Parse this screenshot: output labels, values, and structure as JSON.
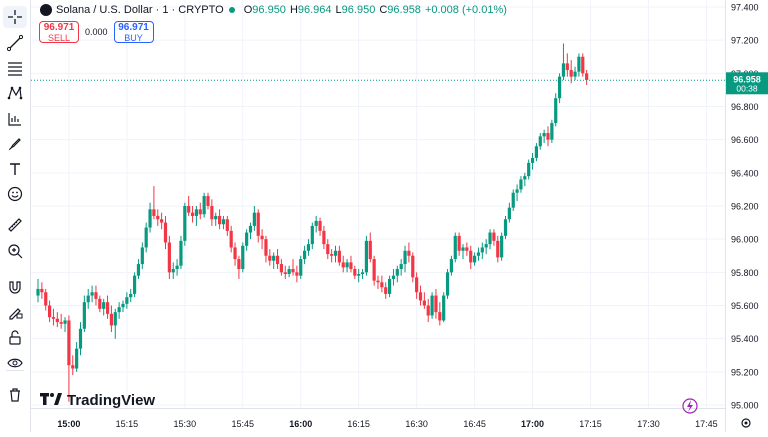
{
  "toolbar": {
    "items": [
      {
        "name": "crosshair-icon"
      },
      {
        "name": "trend-line-icon"
      },
      {
        "name": "fib-retracement-icon"
      },
      {
        "name": "pattern-icon"
      },
      {
        "name": "forecast-icon"
      },
      {
        "name": "brush-icon"
      },
      {
        "name": "text-icon"
      },
      {
        "name": "emoji-icon"
      },
      {
        "name": "ruler-icon"
      },
      {
        "name": "zoom-in-icon"
      },
      {
        "name": "magnet-icon"
      },
      {
        "name": "lock-drawing-icon"
      },
      {
        "name": "unlock-icon"
      },
      {
        "name": "eye-icon"
      },
      {
        "name": "trash-icon"
      }
    ]
  },
  "legend": {
    "symbol": "Solana / U.S. Dollar · 1 · CRYPTO",
    "o_label": "O",
    "o_value": "96.950",
    "h_label": "H",
    "h_value": "96.964",
    "l_label": "L",
    "l_value": "96.950",
    "c_label": "C",
    "c_value": "96.958",
    "change": "+0.008 (+0.01%)"
  },
  "trade": {
    "sell_price": "96.971",
    "sell_label": "SELL",
    "spread": "0.000",
    "buy_price": "96.971",
    "buy_label": "BUY"
  },
  "price_badge": {
    "price": "96.958",
    "countdown": "00:38"
  },
  "brand": {
    "name": "TradingView"
  },
  "colors": {
    "up": "#089981",
    "down": "#f23645",
    "badge": "#089981",
    "grid": "#f0f3fa",
    "text": "#131722"
  },
  "chart_data": {
    "type": "candlestick",
    "symbol": "Solana / U.S. Dollar",
    "interval": "1",
    "y_ticks": [
      95.0,
      95.2,
      95.4,
      95.6,
      95.8,
      96.0,
      96.2,
      96.4,
      96.6,
      96.8,
      97.0,
      97.2,
      97.4
    ],
    "y_tick_labels": [
      "95.000",
      "95.200",
      "95.400",
      "95.600",
      "95.800",
      "96.000",
      "96.200",
      "96.400",
      "96.600",
      "96.800",
      "97.000",
      "97.200",
      "97.400"
    ],
    "ylim": [
      94.97,
      97.43
    ],
    "x_ticks": [
      "15:00",
      "15:15",
      "15:30",
      "15:45",
      "16:00",
      "16:15",
      "16:30",
      "16:45",
      "17:00",
      "17:15",
      "17:30",
      "17:45"
    ],
    "x_tick_minutes": [
      0,
      15,
      30,
      45,
      60,
      75,
      90,
      105,
      120,
      135,
      150,
      165
    ],
    "x_bold": [
      "15:00",
      "16:00",
      "17:00"
    ],
    "x_range_minutes": [
      -8,
      168
    ],
    "last_price": 96.958,
    "candles": [
      {
        "t": -8,
        "o": 95.66,
        "h": 95.76,
        "l": 95.62,
        "c": 95.7
      },
      {
        "t": -7,
        "o": 95.7,
        "h": 95.74,
        "l": 95.64,
        "c": 95.68
      },
      {
        "t": -6,
        "o": 95.68,
        "h": 95.7,
        "l": 95.57,
        "c": 95.6
      },
      {
        "t": -5,
        "o": 95.6,
        "h": 95.63,
        "l": 95.5,
        "c": 95.53
      },
      {
        "t": -4,
        "o": 95.53,
        "h": 95.58,
        "l": 95.48,
        "c": 95.52
      },
      {
        "t": -3,
        "o": 95.52,
        "h": 95.56,
        "l": 95.47,
        "c": 95.5
      },
      {
        "t": -2,
        "o": 95.5,
        "h": 95.55,
        "l": 95.46,
        "c": 95.49
      },
      {
        "t": -1,
        "o": 95.49,
        "h": 95.53,
        "l": 95.44,
        "c": 95.51
      },
      {
        "t": 0,
        "o": 95.51,
        "h": 95.54,
        "l": 95.02,
        "c": 95.24
      },
      {
        "t": 1,
        "o": 95.24,
        "h": 95.3,
        "l": 95.18,
        "c": 95.22
      },
      {
        "t": 2,
        "o": 95.22,
        "h": 95.38,
        "l": 95.2,
        "c": 95.34
      },
      {
        "t": 3,
        "o": 95.34,
        "h": 95.5,
        "l": 95.3,
        "c": 95.46
      },
      {
        "t": 4,
        "o": 95.46,
        "h": 95.66,
        "l": 95.44,
        "c": 95.62
      },
      {
        "t": 5,
        "o": 95.62,
        "h": 95.7,
        "l": 95.58,
        "c": 95.66
      },
      {
        "t": 6,
        "o": 95.66,
        "h": 95.72,
        "l": 95.62,
        "c": 95.68
      },
      {
        "t": 7,
        "o": 95.68,
        "h": 95.72,
        "l": 95.6,
        "c": 95.64
      },
      {
        "t": 8,
        "o": 95.64,
        "h": 95.66,
        "l": 95.56,
        "c": 95.58
      },
      {
        "t": 9,
        "o": 95.58,
        "h": 95.64,
        "l": 95.54,
        "c": 95.62
      },
      {
        "t": 10,
        "o": 95.62,
        "h": 95.66,
        "l": 95.52,
        "c": 95.55
      },
      {
        "t": 11,
        "o": 95.55,
        "h": 95.6,
        "l": 95.44,
        "c": 95.48
      },
      {
        "t": 12,
        "o": 95.48,
        "h": 95.58,
        "l": 95.4,
        "c": 95.56
      },
      {
        "t": 13,
        "o": 95.56,
        "h": 95.62,
        "l": 95.52,
        "c": 95.59
      },
      {
        "t": 14,
        "o": 95.59,
        "h": 95.63,
        "l": 95.56,
        "c": 95.61
      },
      {
        "t": 15,
        "o": 95.61,
        "h": 95.68,
        "l": 95.58,
        "c": 95.65
      },
      {
        "t": 16,
        "o": 95.65,
        "h": 95.7,
        "l": 95.62,
        "c": 95.67
      },
      {
        "t": 17,
        "o": 95.67,
        "h": 95.8,
        "l": 95.65,
        "c": 95.78
      },
      {
        "t": 18,
        "o": 95.78,
        "h": 95.88,
        "l": 95.76,
        "c": 95.85
      },
      {
        "t": 19,
        "o": 95.85,
        "h": 95.98,
        "l": 95.82,
        "c": 95.95
      },
      {
        "t": 20,
        "o": 95.95,
        "h": 96.1,
        "l": 95.92,
        "c": 96.07
      },
      {
        "t": 21,
        "o": 96.07,
        "h": 96.22,
        "l": 96.04,
        "c": 96.18
      },
      {
        "t": 22,
        "o": 96.18,
        "h": 96.32,
        "l": 96.12,
        "c": 96.14
      },
      {
        "t": 23,
        "o": 96.14,
        "h": 96.18,
        "l": 96.08,
        "c": 96.12
      },
      {
        "t": 24,
        "o": 96.12,
        "h": 96.16,
        "l": 96.06,
        "c": 96.1
      },
      {
        "t": 25,
        "o": 96.1,
        "h": 96.14,
        "l": 95.94,
        "c": 95.98
      },
      {
        "t": 26,
        "o": 95.98,
        "h": 96.02,
        "l": 95.76,
        "c": 95.8
      },
      {
        "t": 27,
        "o": 95.8,
        "h": 95.86,
        "l": 95.76,
        "c": 95.82
      },
      {
        "t": 28,
        "o": 95.82,
        "h": 95.88,
        "l": 95.78,
        "c": 95.84
      },
      {
        "t": 29,
        "o": 95.84,
        "h": 96.02,
        "l": 95.82,
        "c": 95.99
      },
      {
        "t": 30,
        "o": 95.99,
        "h": 96.22,
        "l": 95.96,
        "c": 96.2
      },
      {
        "t": 31,
        "o": 96.2,
        "h": 96.26,
        "l": 96.14,
        "c": 96.16
      },
      {
        "t": 32,
        "o": 96.16,
        "h": 96.2,
        "l": 96.1,
        "c": 96.14
      },
      {
        "t": 33,
        "o": 96.14,
        "h": 96.2,
        "l": 96.08,
        "c": 96.18
      },
      {
        "t": 34,
        "o": 96.18,
        "h": 96.22,
        "l": 96.12,
        "c": 96.15
      },
      {
        "t": 35,
        "o": 96.15,
        "h": 96.28,
        "l": 96.13,
        "c": 96.26
      },
      {
        "t": 36,
        "o": 96.26,
        "h": 96.28,
        "l": 96.18,
        "c": 96.2
      },
      {
        "t": 37,
        "o": 96.2,
        "h": 96.24,
        "l": 96.08,
        "c": 96.12
      },
      {
        "t": 38,
        "o": 96.12,
        "h": 96.16,
        "l": 96.08,
        "c": 96.14
      },
      {
        "t": 39,
        "o": 96.14,
        "h": 96.18,
        "l": 96.06,
        "c": 96.09
      },
      {
        "t": 40,
        "o": 96.09,
        "h": 96.14,
        "l": 96.06,
        "c": 96.12
      },
      {
        "t": 41,
        "o": 96.12,
        "h": 96.14,
        "l": 96.02,
        "c": 96.05
      },
      {
        "t": 42,
        "o": 96.05,
        "h": 96.08,
        "l": 95.92,
        "c": 95.95
      },
      {
        "t": 43,
        "o": 95.95,
        "h": 95.98,
        "l": 95.84,
        "c": 95.88
      },
      {
        "t": 44,
        "o": 95.88,
        "h": 95.9,
        "l": 95.76,
        "c": 95.82
      },
      {
        "t": 45,
        "o": 95.82,
        "h": 95.98,
        "l": 95.8,
        "c": 95.96
      },
      {
        "t": 46,
        "o": 95.96,
        "h": 96.06,
        "l": 95.93,
        "c": 96.04
      },
      {
        "t": 47,
        "o": 96.04,
        "h": 96.1,
        "l": 96.0,
        "c": 96.08
      },
      {
        "t": 48,
        "o": 96.08,
        "h": 96.2,
        "l": 96.05,
        "c": 96.16
      },
      {
        "t": 49,
        "o": 96.16,
        "h": 96.18,
        "l": 95.98,
        "c": 96.02
      },
      {
        "t": 50,
        "o": 96.02,
        "h": 96.06,
        "l": 95.94,
        "c": 96.0
      },
      {
        "t": 51,
        "o": 96.0,
        "h": 96.02,
        "l": 95.86,
        "c": 95.9
      },
      {
        "t": 52,
        "o": 95.9,
        "h": 95.94,
        "l": 95.84,
        "c": 95.87
      },
      {
        "t": 53,
        "o": 95.87,
        "h": 95.92,
        "l": 95.82,
        "c": 95.9
      },
      {
        "t": 54,
        "o": 95.9,
        "h": 95.94,
        "l": 95.82,
        "c": 95.85
      },
      {
        "t": 55,
        "o": 95.85,
        "h": 95.88,
        "l": 95.78,
        "c": 95.8
      },
      {
        "t": 56,
        "o": 95.8,
        "h": 95.84,
        "l": 95.76,
        "c": 95.79
      },
      {
        "t": 57,
        "o": 95.79,
        "h": 95.84,
        "l": 95.77,
        "c": 95.82
      },
      {
        "t": 58,
        "o": 95.82,
        "h": 95.88,
        "l": 95.78,
        "c": 95.8
      },
      {
        "t": 59,
        "o": 95.8,
        "h": 95.84,
        "l": 95.74,
        "c": 95.78
      },
      {
        "t": 60,
        "o": 95.78,
        "h": 95.9,
        "l": 95.76,
        "c": 95.88
      },
      {
        "t": 61,
        "o": 95.88,
        "h": 95.96,
        "l": 95.85,
        "c": 95.93
      },
      {
        "t": 62,
        "o": 95.93,
        "h": 96.0,
        "l": 95.9,
        "c": 95.97
      },
      {
        "t": 63,
        "o": 95.97,
        "h": 96.1,
        "l": 95.94,
        "c": 96.08
      },
      {
        "t": 64,
        "o": 96.08,
        "h": 96.14,
        "l": 96.04,
        "c": 96.11
      },
      {
        "t": 65,
        "o": 96.11,
        "h": 96.13,
        "l": 96.02,
        "c": 96.05
      },
      {
        "t": 66,
        "o": 96.05,
        "h": 96.08,
        "l": 95.94,
        "c": 95.97
      },
      {
        "t": 67,
        "o": 95.97,
        "h": 96.0,
        "l": 95.88,
        "c": 95.91
      },
      {
        "t": 68,
        "o": 95.91,
        "h": 95.94,
        "l": 95.86,
        "c": 95.9
      },
      {
        "t": 69,
        "o": 95.9,
        "h": 95.96,
        "l": 95.86,
        "c": 95.93
      },
      {
        "t": 70,
        "o": 95.93,
        "h": 95.96,
        "l": 95.84,
        "c": 95.86
      },
      {
        "t": 71,
        "o": 95.86,
        "h": 95.9,
        "l": 95.8,
        "c": 95.83
      },
      {
        "t": 72,
        "o": 95.83,
        "h": 95.88,
        "l": 95.8,
        "c": 95.86
      },
      {
        "t": 73,
        "o": 95.86,
        "h": 95.9,
        "l": 95.8,
        "c": 95.82
      },
      {
        "t": 74,
        "o": 95.82,
        "h": 95.84,
        "l": 95.76,
        "c": 95.78
      },
      {
        "t": 75,
        "o": 95.78,
        "h": 95.82,
        "l": 95.74,
        "c": 95.79
      },
      {
        "t": 76,
        "o": 95.79,
        "h": 95.82,
        "l": 95.76,
        "c": 95.8
      },
      {
        "t": 77,
        "o": 95.8,
        "h": 96.02,
        "l": 95.78,
        "c": 95.99
      },
      {
        "t": 78,
        "o": 95.99,
        "h": 96.04,
        "l": 95.86,
        "c": 95.88
      },
      {
        "t": 79,
        "o": 95.88,
        "h": 95.9,
        "l": 95.72,
        "c": 95.75
      },
      {
        "t": 80,
        "o": 95.75,
        "h": 95.78,
        "l": 95.7,
        "c": 95.74
      },
      {
        "t": 81,
        "o": 95.74,
        "h": 95.78,
        "l": 95.68,
        "c": 95.71
      },
      {
        "t": 82,
        "o": 95.71,
        "h": 95.74,
        "l": 95.64,
        "c": 95.67
      },
      {
        "t": 83,
        "o": 95.67,
        "h": 95.78,
        "l": 95.65,
        "c": 95.76
      },
      {
        "t": 84,
        "o": 95.76,
        "h": 95.82,
        "l": 95.72,
        "c": 95.78
      },
      {
        "t": 85,
        "o": 95.78,
        "h": 95.84,
        "l": 95.74,
        "c": 95.82
      },
      {
        "t": 86,
        "o": 95.82,
        "h": 95.88,
        "l": 95.78,
        "c": 95.85
      },
      {
        "t": 87,
        "o": 95.85,
        "h": 95.96,
        "l": 95.8,
        "c": 95.93
      },
      {
        "t": 88,
        "o": 95.93,
        "h": 95.98,
        "l": 95.86,
        "c": 95.9
      },
      {
        "t": 89,
        "o": 95.9,
        "h": 95.92,
        "l": 95.74,
        "c": 95.77
      },
      {
        "t": 90,
        "o": 95.77,
        "h": 95.8,
        "l": 95.64,
        "c": 95.68
      },
      {
        "t": 91,
        "o": 95.68,
        "h": 95.72,
        "l": 95.6,
        "c": 95.63
      },
      {
        "t": 92,
        "o": 95.63,
        "h": 95.68,
        "l": 95.58,
        "c": 95.6
      },
      {
        "t": 93,
        "o": 95.6,
        "h": 95.64,
        "l": 95.5,
        "c": 95.54
      },
      {
        "t": 94,
        "o": 95.54,
        "h": 95.68,
        "l": 95.52,
        "c": 95.66
      },
      {
        "t": 95,
        "o": 95.66,
        "h": 95.7,
        "l": 95.52,
        "c": 95.56
      },
      {
        "t": 96,
        "o": 95.56,
        "h": 95.62,
        "l": 95.48,
        "c": 95.51
      },
      {
        "t": 97,
        "o": 95.51,
        "h": 95.68,
        "l": 95.5,
        "c": 95.66
      },
      {
        "t": 98,
        "o": 95.66,
        "h": 95.82,
        "l": 95.64,
        "c": 95.8
      },
      {
        "t": 99,
        "o": 95.8,
        "h": 95.9,
        "l": 95.78,
        "c": 95.88
      },
      {
        "t": 100,
        "o": 95.88,
        "h": 96.04,
        "l": 95.86,
        "c": 96.02
      },
      {
        "t": 101,
        "o": 96.02,
        "h": 96.04,
        "l": 95.9,
        "c": 95.93
      },
      {
        "t": 102,
        "o": 95.93,
        "h": 95.97,
        "l": 95.88,
        "c": 95.95
      },
      {
        "t": 103,
        "o": 95.95,
        "h": 95.98,
        "l": 95.9,
        "c": 95.93
      },
      {
        "t": 104,
        "o": 95.93,
        "h": 95.96,
        "l": 95.82,
        "c": 95.86
      },
      {
        "t": 105,
        "o": 95.86,
        "h": 95.92,
        "l": 95.84,
        "c": 95.9
      },
      {
        "t": 106,
        "o": 95.9,
        "h": 95.95,
        "l": 95.87,
        "c": 95.92
      },
      {
        "t": 107,
        "o": 95.92,
        "h": 95.98,
        "l": 95.88,
        "c": 95.95
      },
      {
        "t": 108,
        "o": 95.95,
        "h": 96.0,
        "l": 95.91,
        "c": 95.97
      },
      {
        "t": 109,
        "o": 95.97,
        "h": 96.06,
        "l": 95.94,
        "c": 96.04
      },
      {
        "t": 110,
        "o": 96.04,
        "h": 96.06,
        "l": 95.96,
        "c": 95.99
      },
      {
        "t": 111,
        "o": 95.99,
        "h": 96.02,
        "l": 95.86,
        "c": 95.89
      },
      {
        "t": 112,
        "o": 95.89,
        "h": 96.04,
        "l": 95.87,
        "c": 96.02
      },
      {
        "t": 113,
        "o": 96.02,
        "h": 96.14,
        "l": 96.0,
        "c": 96.12
      },
      {
        "t": 114,
        "o": 96.12,
        "h": 96.22,
        "l": 96.1,
        "c": 96.19
      },
      {
        "t": 115,
        "o": 96.19,
        "h": 96.3,
        "l": 96.17,
        "c": 96.28
      },
      {
        "t": 116,
        "o": 96.28,
        "h": 96.33,
        "l": 96.23,
        "c": 96.3
      },
      {
        "t": 117,
        "o": 96.3,
        "h": 96.38,
        "l": 96.28,
        "c": 96.36
      },
      {
        "t": 118,
        "o": 96.36,
        "h": 96.4,
        "l": 96.32,
        "c": 96.38
      },
      {
        "t": 119,
        "o": 96.38,
        "h": 96.48,
        "l": 96.36,
        "c": 96.46
      },
      {
        "t": 120,
        "o": 96.46,
        "h": 96.52,
        "l": 96.42,
        "c": 96.49
      },
      {
        "t": 121,
        "o": 96.49,
        "h": 96.58,
        "l": 96.47,
        "c": 96.56
      },
      {
        "t": 122,
        "o": 96.56,
        "h": 96.64,
        "l": 96.54,
        "c": 96.62
      },
      {
        "t": 123,
        "o": 96.62,
        "h": 96.66,
        "l": 96.58,
        "c": 96.64
      },
      {
        "t": 124,
        "o": 96.64,
        "h": 96.68,
        "l": 96.56,
        "c": 96.6
      },
      {
        "t": 125,
        "o": 96.6,
        "h": 96.72,
        "l": 96.58,
        "c": 96.7
      },
      {
        "t": 126,
        "o": 96.7,
        "h": 96.88,
        "l": 96.68,
        "c": 96.85
      },
      {
        "t": 127,
        "o": 96.85,
        "h": 97.0,
        "l": 96.82,
        "c": 96.98
      },
      {
        "t": 128,
        "o": 96.98,
        "h": 97.18,
        "l": 96.96,
        "c": 97.06
      },
      {
        "t": 129,
        "o": 97.06,
        "h": 97.12,
        "l": 96.98,
        "c": 97.02
      },
      {
        "t": 130,
        "o": 97.02,
        "h": 97.08,
        "l": 96.94,
        "c": 96.98
      },
      {
        "t": 131,
        "o": 96.98,
        "h": 97.04,
        "l": 96.96,
        "c": 97.01
      },
      {
        "t": 132,
        "o": 97.01,
        "h": 97.12,
        "l": 96.98,
        "c": 97.1
      },
      {
        "t": 133,
        "o": 97.1,
        "h": 97.12,
        "l": 96.98,
        "c": 97.0
      },
      {
        "t": 134,
        "o": 97.0,
        "h": 97.02,
        "l": 96.93,
        "c": 96.96
      }
    ]
  }
}
